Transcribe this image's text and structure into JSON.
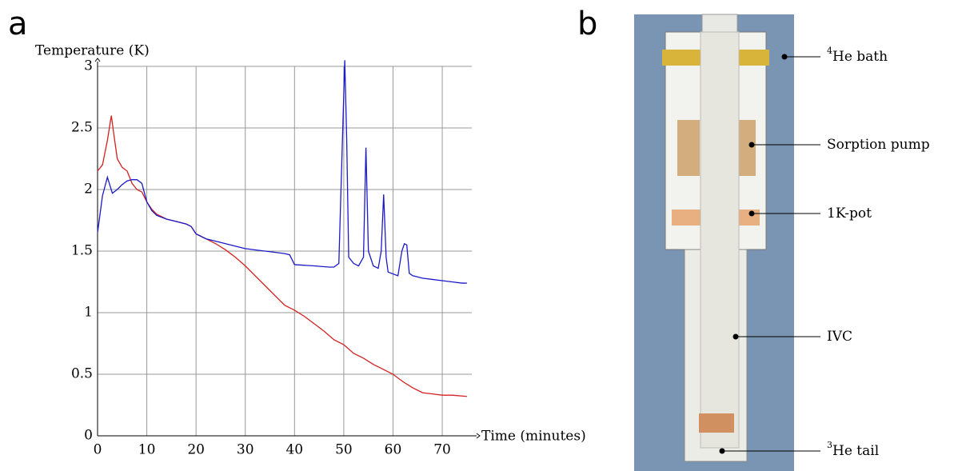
{
  "panel_labels": [
    "a",
    "b"
  ],
  "chart_data": {
    "type": "line",
    "y_label": "Temperature (K)",
    "x_label": "Time (minutes)",
    "xlim": [
      0,
      76
    ],
    "ylim": [
      0,
      3
    ],
    "xticks": [
      0,
      10,
      20,
      30,
      40,
      50,
      60,
      70
    ],
    "yticks": [
      0,
      0.5,
      1,
      1.5,
      2,
      2.5,
      3
    ],
    "grid": true,
    "series": [
      {
        "color": "#d42020",
        "x": [
          0,
          1,
          2,
          2.8,
          3.3,
          4,
          5,
          6,
          7,
          8,
          9,
          10,
          11,
          12,
          14,
          16,
          18,
          19,
          20,
          22,
          24,
          26,
          28,
          30,
          32,
          34,
          36,
          38,
          40,
          42,
          44,
          46,
          48,
          50,
          52,
          54,
          56,
          58,
          60,
          62,
          64,
          66,
          68,
          70,
          72,
          75
        ],
        "values": [
          2.15,
          2.2,
          2.4,
          2.6,
          2.45,
          2.25,
          2.18,
          2.15,
          2.05,
          2.0,
          1.98,
          1.9,
          1.84,
          1.8,
          1.76,
          1.74,
          1.72,
          1.7,
          1.64,
          1.6,
          1.56,
          1.51,
          1.45,
          1.38,
          1.3,
          1.22,
          1.14,
          1.06,
          1.02,
          0.97,
          0.91,
          0.85,
          0.78,
          0.74,
          0.67,
          0.63,
          0.58,
          0.54,
          0.5,
          0.44,
          0.39,
          0.35,
          0.34,
          0.33,
          0.33,
          0.32
        ]
      },
      {
        "color": "#1a1ac8",
        "x": [
          0,
          1,
          2,
          3,
          4,
          5,
          6,
          7,
          8,
          9,
          10,
          11,
          12,
          14,
          16,
          18,
          19,
          20,
          22,
          24,
          26,
          28,
          30,
          32,
          34,
          36,
          38,
          39,
          40,
          44,
          47,
          48,
          49,
          49.8,
          50.2,
          50.6,
          51,
          52,
          53,
          54,
          54.5,
          55,
          56,
          57,
          57.6,
          58.1,
          58.6,
          59,
          61,
          61.8,
          62.3,
          62.8,
          63.3,
          64,
          66,
          68,
          70,
          72,
          74,
          75
        ],
        "values": [
          1.65,
          1.95,
          2.1,
          1.97,
          2.0,
          2.04,
          2.07,
          2.08,
          2.08,
          2.05,
          1.9,
          1.83,
          1.79,
          1.76,
          1.74,
          1.72,
          1.7,
          1.64,
          1.6,
          1.58,
          1.56,
          1.54,
          1.52,
          1.51,
          1.5,
          1.49,
          1.48,
          1.47,
          1.39,
          1.38,
          1.37,
          1.37,
          1.4,
          2.5,
          3.05,
          2.4,
          1.45,
          1.4,
          1.38,
          1.45,
          2.34,
          1.5,
          1.38,
          1.36,
          1.5,
          1.96,
          1.45,
          1.33,
          1.3,
          1.5,
          1.56,
          1.55,
          1.32,
          1.3,
          1.28,
          1.27,
          1.26,
          1.25,
          1.24,
          1.24
        ]
      }
    ]
  },
  "diagram": {
    "labels": [
      {
        "sup": "4",
        "text": "He bath"
      },
      {
        "text": "Sorption pump"
      },
      {
        "text": "1K-pot"
      },
      {
        "text": "IVC"
      },
      {
        "sup": "3",
        "text": "He tail"
      }
    ]
  }
}
